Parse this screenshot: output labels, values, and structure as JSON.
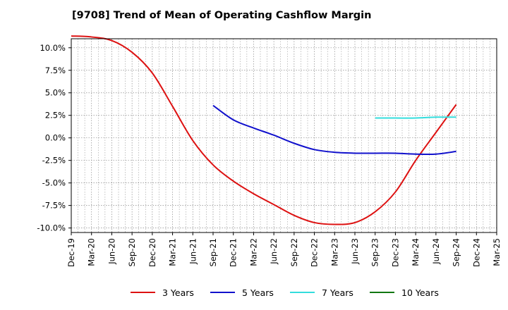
{
  "title": "[9708]  Trend of Mean of Operating Cashflow Margin",
  "chart_data": {
    "type": "line",
    "title": "[9708]  Trend of Mean of Operating Cashflow Margin",
    "xlabel": "",
    "ylabel": "",
    "ylim": [
      -10.5,
      11.0
    ],
    "yticks": [
      10.0,
      7.5,
      5.0,
      2.5,
      0.0,
      -2.5,
      -5.0,
      -7.5,
      -10.0
    ],
    "ytick_labels": [
      "10.0%",
      "7.5%",
      "5.0%",
      "2.5%",
      "0.0%",
      "-2.5%",
      "-5.0%",
      "-7.5%",
      "-10.0%"
    ],
    "x_categories": [
      "Dec-19",
      "Mar-20",
      "Jun-20",
      "Sep-20",
      "Dec-20",
      "Mar-21",
      "Jun-21",
      "Sep-21",
      "Dec-21",
      "Mar-22",
      "Jun-22",
      "Sep-22",
      "Dec-22",
      "Mar-23",
      "Jun-23",
      "Sep-23",
      "Dec-23",
      "Mar-24",
      "Jun-24",
      "Sep-24",
      "Dec-24",
      "Mar-25"
    ],
    "grid": true,
    "legend_position": "bottom",
    "series": [
      {
        "name": "3 Years",
        "color": "#dd1111",
        "points": [
          [
            "Dec-19",
            11.3
          ],
          [
            "Mar-20",
            11.2
          ],
          [
            "Jun-20",
            10.8
          ],
          [
            "Sep-20",
            9.5
          ],
          [
            "Dec-20",
            7.2
          ],
          [
            "Mar-21",
            3.5
          ],
          [
            "Jun-21",
            -0.3
          ],
          [
            "Sep-21",
            -3.0
          ],
          [
            "Dec-21",
            -4.8
          ],
          [
            "Mar-22",
            -6.2
          ],
          [
            "Jun-22",
            -7.4
          ],
          [
            "Sep-22",
            -8.6
          ],
          [
            "Dec-22",
            -9.4
          ],
          [
            "Mar-23",
            -9.6
          ],
          [
            "Jun-23",
            -9.4
          ],
          [
            "Sep-23",
            -8.2
          ],
          [
            "Dec-23",
            -6.0
          ],
          [
            "Mar-24",
            -2.5
          ],
          [
            "Jun-24",
            0.6
          ],
          [
            "Sep-24",
            3.7
          ]
        ]
      },
      {
        "name": "5 Years",
        "color": "#1111cc",
        "points": [
          [
            "Sep-21",
            3.6
          ],
          [
            "Dec-21",
            2.0
          ],
          [
            "Mar-22",
            1.1
          ],
          [
            "Jun-22",
            0.3
          ],
          [
            "Sep-22",
            -0.6
          ],
          [
            "Dec-22",
            -1.3
          ],
          [
            "Mar-23",
            -1.6
          ],
          [
            "Jun-23",
            -1.7
          ],
          [
            "Sep-23",
            -1.7
          ],
          [
            "Dec-23",
            -1.7
          ],
          [
            "Mar-24",
            -1.8
          ],
          [
            "Jun-24",
            -1.8
          ],
          [
            "Sep-24",
            -1.5
          ]
        ]
      },
      {
        "name": "7 Years",
        "color": "#33dddd",
        "points": [
          [
            "Sep-23",
            2.2
          ],
          [
            "Dec-23",
            2.2
          ],
          [
            "Mar-24",
            2.2
          ],
          [
            "Jun-24",
            2.3
          ],
          [
            "Sep-24",
            2.3
          ]
        ]
      },
      {
        "name": "10 Years",
        "color": "#117711",
        "points": []
      }
    ]
  }
}
